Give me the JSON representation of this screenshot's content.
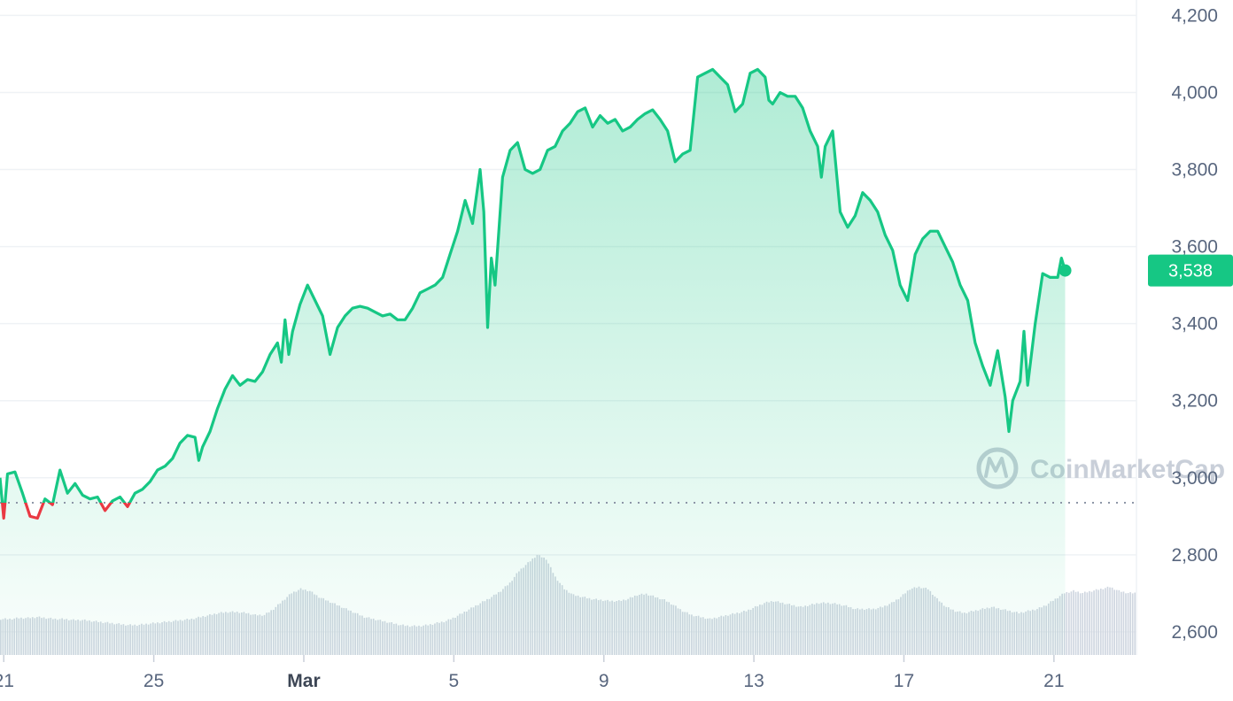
{
  "watermark": {
    "text": "CoinMarketCap"
  },
  "colors": {
    "up": "#16c784",
    "down": "#ea3943",
    "grid": "#eff2f5",
    "volume": "#cfd6e0"
  },
  "current_price": {
    "label": "3,538",
    "value": 3538
  },
  "chart_data": {
    "type": "line",
    "title": "",
    "xlabel": "",
    "ylabel": "",
    "ylim": [
      2540,
      4240
    ],
    "y_ticks": [
      2600,
      2800,
      3000,
      3200,
      3400,
      3600,
      3800,
      4000,
      4200
    ],
    "y_tick_labels": [
      "2,600",
      "2,800",
      "3,000",
      "3,200",
      "3,400",
      "3,600",
      "3,800",
      "4,000",
      "4,200"
    ],
    "x_range": [
      20.9,
      51.2
    ],
    "x_ticks": [
      {
        "day": 21,
        "label": "21"
      },
      {
        "day": 25,
        "label": "25"
      },
      {
        "day": 29,
        "label": "Mar",
        "emphasis": true
      },
      {
        "day": 33,
        "label": "5"
      },
      {
        "day": 37,
        "label": "9"
      },
      {
        "day": 41,
        "label": "13"
      },
      {
        "day": 45,
        "label": "17"
      },
      {
        "day": 49,
        "label": "21"
      }
    ],
    "baseline": 2935,
    "grid": true,
    "series": [
      {
        "values": [
          [
            20.9,
            3000
          ],
          [
            21.0,
            2895
          ],
          [
            21.1,
            3010
          ],
          [
            21.3,
            3015
          ],
          [
            21.5,
            2960
          ],
          [
            21.7,
            2900
          ],
          [
            21.9,
            2895
          ],
          [
            22.1,
            2945
          ],
          [
            22.3,
            2930
          ],
          [
            22.5,
            3020
          ],
          [
            22.7,
            2960
          ],
          [
            22.9,
            2985
          ],
          [
            23.1,
            2955
          ],
          [
            23.3,
            2945
          ],
          [
            23.5,
            2950
          ],
          [
            23.7,
            2915
          ],
          [
            23.9,
            2940
          ],
          [
            24.1,
            2950
          ],
          [
            24.3,
            2925
          ],
          [
            24.5,
            2960
          ],
          [
            24.7,
            2970
          ],
          [
            24.9,
            2990
          ],
          [
            25.1,
            3020
          ],
          [
            25.3,
            3030
          ],
          [
            25.5,
            3050
          ],
          [
            25.7,
            3090
          ],
          [
            25.9,
            3110
          ],
          [
            26.1,
            3105
          ],
          [
            26.2,
            3045
          ],
          [
            26.3,
            3080
          ],
          [
            26.5,
            3120
          ],
          [
            26.7,
            3180
          ],
          [
            26.9,
            3230
          ],
          [
            27.1,
            3265
          ],
          [
            27.3,
            3240
          ],
          [
            27.5,
            3255
          ],
          [
            27.7,
            3250
          ],
          [
            27.9,
            3275
          ],
          [
            28.1,
            3320
          ],
          [
            28.3,
            3350
          ],
          [
            28.4,
            3300
          ],
          [
            28.5,
            3410
          ],
          [
            28.6,
            3320
          ],
          [
            28.7,
            3380
          ],
          [
            28.9,
            3450
          ],
          [
            29.1,
            3500
          ],
          [
            29.3,
            3460
          ],
          [
            29.5,
            3420
          ],
          [
            29.6,
            3370
          ],
          [
            29.7,
            3320
          ],
          [
            29.9,
            3390
          ],
          [
            30.1,
            3420
          ],
          [
            30.3,
            3440
          ],
          [
            30.5,
            3445
          ],
          [
            30.7,
            3440
          ],
          [
            30.9,
            3430
          ],
          [
            31.1,
            3420
          ],
          [
            31.3,
            3425
          ],
          [
            31.5,
            3410
          ],
          [
            31.7,
            3410
          ],
          [
            31.9,
            3440
          ],
          [
            32.1,
            3480
          ],
          [
            32.3,
            3490
          ],
          [
            32.5,
            3500
          ],
          [
            32.7,
            3520
          ],
          [
            32.9,
            3580
          ],
          [
            33.1,
            3640
          ],
          [
            33.3,
            3720
          ],
          [
            33.5,
            3660
          ],
          [
            33.7,
            3800
          ],
          [
            33.8,
            3690
          ],
          [
            33.9,
            3390
          ],
          [
            34.0,
            3570
          ],
          [
            34.1,
            3500
          ],
          [
            34.3,
            3780
          ],
          [
            34.5,
            3850
          ],
          [
            34.7,
            3870
          ],
          [
            34.9,
            3800
          ],
          [
            35.1,
            3790
          ],
          [
            35.3,
            3800
          ],
          [
            35.5,
            3850
          ],
          [
            35.7,
            3860
          ],
          [
            35.9,
            3900
          ],
          [
            36.1,
            3920
          ],
          [
            36.3,
            3950
          ],
          [
            36.5,
            3960
          ],
          [
            36.7,
            3910
          ],
          [
            36.9,
            3940
          ],
          [
            37.1,
            3920
          ],
          [
            37.3,
            3930
          ],
          [
            37.5,
            3900
          ],
          [
            37.7,
            3910
          ],
          [
            37.9,
            3930
          ],
          [
            38.1,
            3945
          ],
          [
            38.3,
            3955
          ],
          [
            38.5,
            3930
          ],
          [
            38.7,
            3900
          ],
          [
            38.9,
            3820
          ],
          [
            39.1,
            3840
          ],
          [
            39.3,
            3850
          ],
          [
            39.5,
            4040
          ],
          [
            39.7,
            4050
          ],
          [
            39.9,
            4060
          ],
          [
            40.1,
            4040
          ],
          [
            40.3,
            4020
          ],
          [
            40.5,
            3950
          ],
          [
            40.7,
            3970
          ],
          [
            40.9,
            4050
          ],
          [
            41.1,
            4060
          ],
          [
            41.3,
            4040
          ],
          [
            41.4,
            3980
          ],
          [
            41.5,
            3970
          ],
          [
            41.7,
            4000
          ],
          [
            41.9,
            3990
          ],
          [
            42.1,
            3990
          ],
          [
            42.3,
            3960
          ],
          [
            42.5,
            3900
          ],
          [
            42.7,
            3860
          ],
          [
            42.8,
            3780
          ],
          [
            42.9,
            3860
          ],
          [
            43.1,
            3900
          ],
          [
            43.3,
            3690
          ],
          [
            43.5,
            3650
          ],
          [
            43.7,
            3680
          ],
          [
            43.9,
            3740
          ],
          [
            44.1,
            3720
          ],
          [
            44.3,
            3690
          ],
          [
            44.5,
            3630
          ],
          [
            44.7,
            3590
          ],
          [
            44.9,
            3500
          ],
          [
            45.1,
            3460
          ],
          [
            45.3,
            3580
          ],
          [
            45.5,
            3620
          ],
          [
            45.7,
            3640
          ],
          [
            45.9,
            3640
          ],
          [
            46.1,
            3600
          ],
          [
            46.3,
            3560
          ],
          [
            46.5,
            3500
          ],
          [
            46.7,
            3460
          ],
          [
            46.9,
            3350
          ],
          [
            47.1,
            3290
          ],
          [
            47.3,
            3240
          ],
          [
            47.5,
            3330
          ],
          [
            47.7,
            3210
          ],
          [
            47.8,
            3120
          ],
          [
            47.9,
            3200
          ],
          [
            48.1,
            3250
          ],
          [
            48.2,
            3380
          ],
          [
            48.3,
            3240
          ],
          [
            48.5,
            3400
          ],
          [
            48.7,
            3530
          ],
          [
            48.9,
            3520
          ],
          [
            49.1,
            3520
          ],
          [
            49.2,
            3570
          ],
          [
            49.3,
            3538
          ]
        ]
      }
    ],
    "volume_values": [
      20,
      20,
      21,
      21,
      22,
      21,
      20,
      20,
      19,
      19,
      18,
      17,
      16,
      15,
      14,
      14,
      15,
      16,
      17,
      18,
      19,
      20,
      22,
      24,
      26,
      27,
      27,
      26,
      24,
      24,
      30,
      38,
      46,
      50,
      48,
      42,
      38,
      34,
      30,
      26,
      22,
      20,
      18,
      16,
      14,
      13,
      13,
      14,
      16,
      18,
      22,
      27,
      32,
      37,
      42,
      48,
      56,
      68,
      76,
      84,
      80,
      62,
      50,
      44,
      42,
      40,
      39,
      38,
      38,
      40,
      44,
      45,
      42,
      39,
      34,
      28,
      24,
      22,
      20,
      22,
      24,
      26,
      28,
      32,
      36,
      38,
      36,
      34,
      32,
      34,
      36,
      36,
      35,
      33,
      30,
      30,
      30,
      32,
      36,
      42,
      50,
      52,
      50,
      40,
      32,
      28,
      26,
      28,
      30,
      32,
      30,
      28,
      26,
      28,
      30,
      34,
      40,
      46,
      48,
      46,
      48,
      50,
      52,
      48,
      46
    ]
  }
}
